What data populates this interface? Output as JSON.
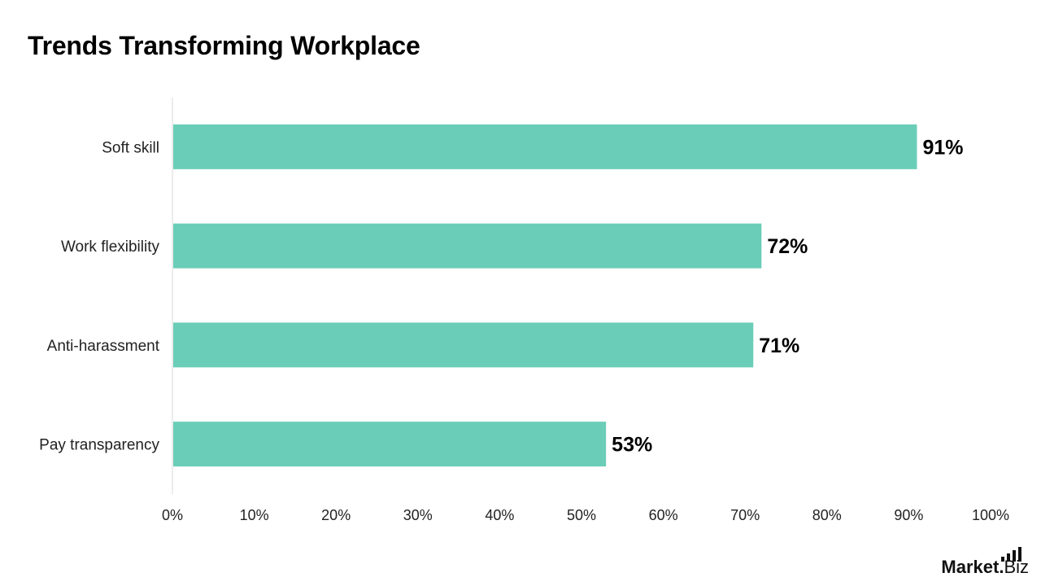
{
  "chart_data": {
    "type": "bar",
    "orientation": "horizontal",
    "title": "Trends Transforming Workplace",
    "categories": [
      "Soft skill",
      "Work flexibility",
      "Anti-harassment",
      "Pay transparency"
    ],
    "values": [
      91,
      72,
      71,
      53
    ],
    "data_labels": [
      "91%",
      "72%",
      "71%",
      "53%"
    ],
    "xlim": [
      0,
      100
    ],
    "x_ticks": [
      0,
      10,
      20,
      30,
      40,
      50,
      60,
      70,
      80,
      90,
      100
    ],
    "x_tick_labels": [
      "0%",
      "10%",
      "20%",
      "30%",
      "40%",
      "50%",
      "60%",
      "70%",
      "80%",
      "90%",
      "100%"
    ],
    "xlabel": "",
    "ylabel": "",
    "grid": false,
    "legend": "none",
    "bar_color": "#6ACDB8"
  },
  "branding": {
    "logo_word": "Market",
    "logo_dot": ".",
    "logo_suffix": "Biz"
  }
}
